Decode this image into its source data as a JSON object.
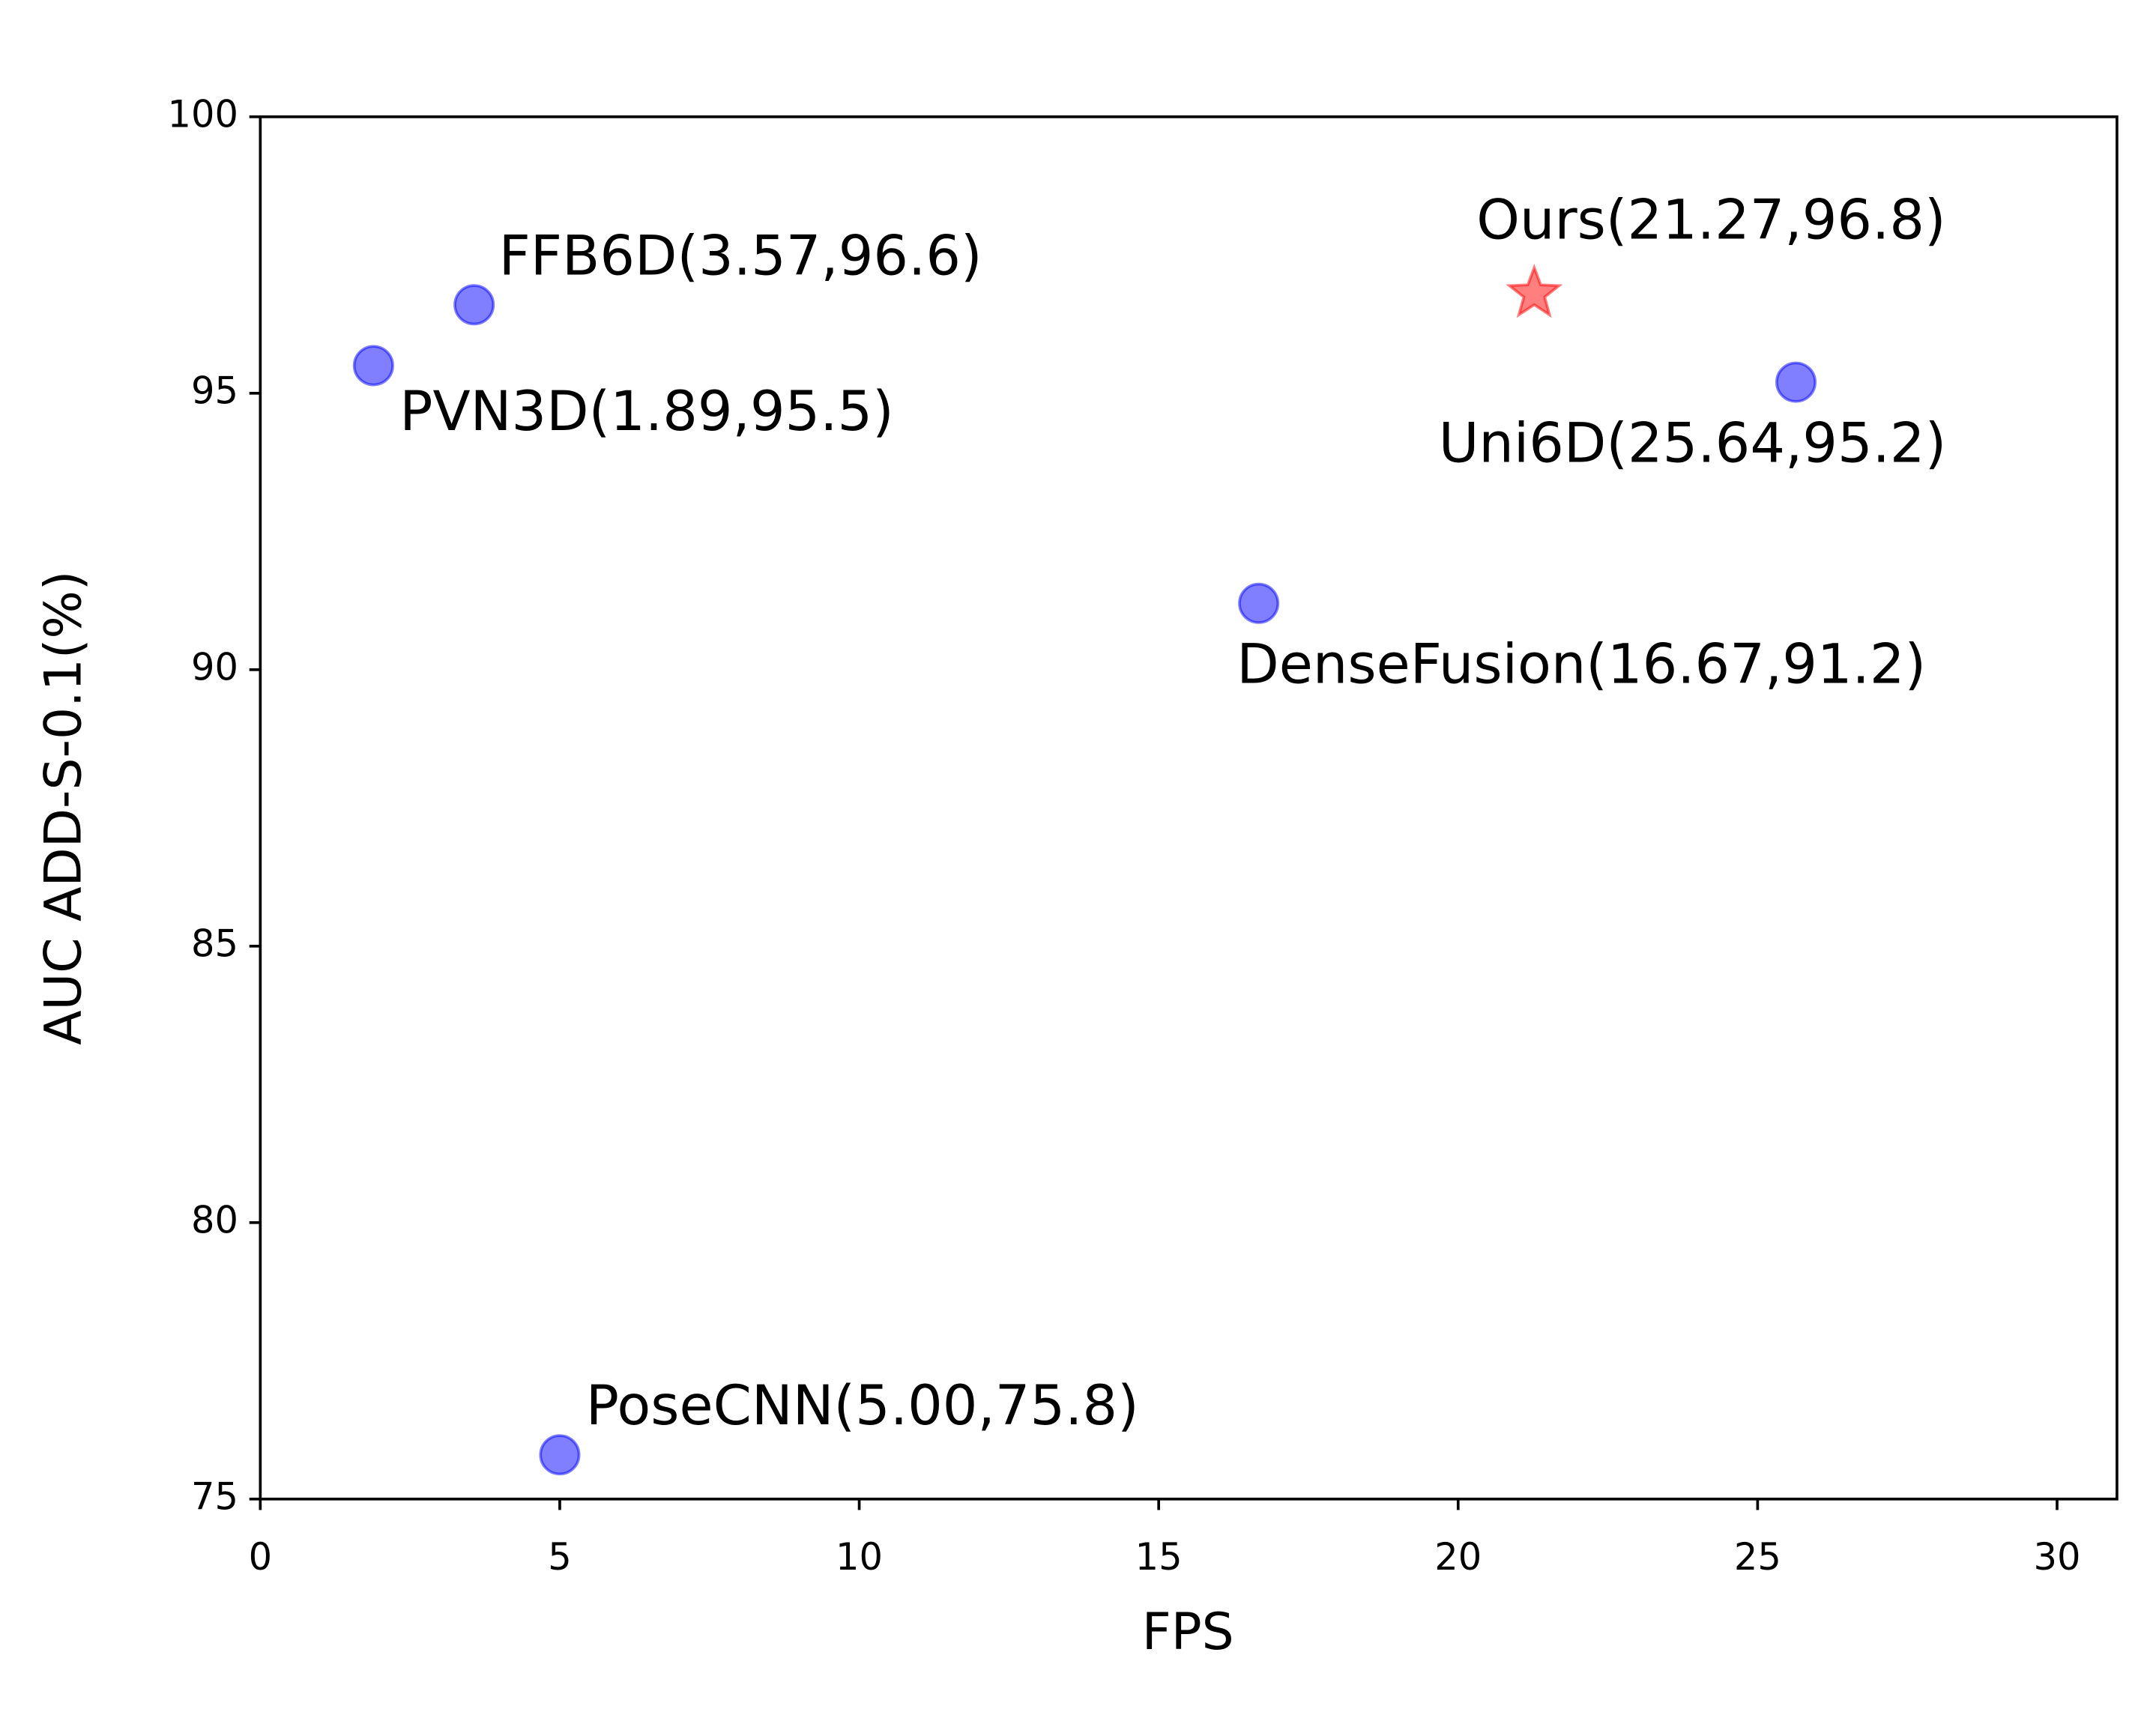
{
  "chart_data": {
    "type": "scatter",
    "x_label": "FPS",
    "y_label": "AUC ADD-S-0.1(%)",
    "xlim": [
      0,
      31
    ],
    "ylim": [
      75,
      100
    ],
    "xticks": [
      0,
      5,
      10,
      15,
      20,
      25,
      30
    ],
    "yticks": [
      75,
      80,
      85,
      90,
      95,
      100
    ],
    "series": [
      {
        "color": "#0000ff",
        "marker": "circle",
        "x": [
          3.57,
          1.89,
          25.64,
          16.67,
          5.0
        ],
        "values": [
          96.6,
          95.5,
          95.2,
          91.2,
          75.8
        ],
        "labels": [
          "FFB6D(3.57,96.6)",
          "PVN3D(1.89,95.5)",
          "Uni6D(25.64,95.2)",
          "DenseFusion(16.67,91.2)",
          "PoseCNN(5.00,75.8)"
        ]
      },
      {
        "color": "#ff0000",
        "marker": "star",
        "x": [
          21.27
        ],
        "values": [
          96.8
        ],
        "labels": [
          "Ours(21.27,96.8)"
        ]
      }
    ]
  }
}
